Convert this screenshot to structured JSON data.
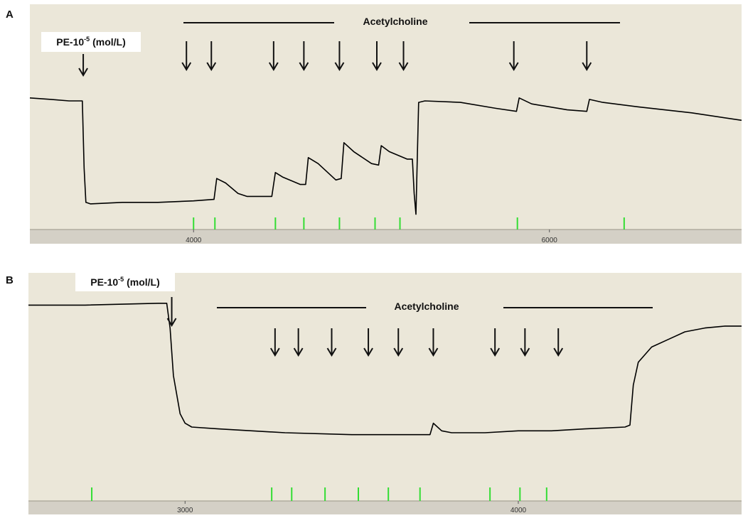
{
  "colors": {
    "background": "#ebe7d9",
    "trace": "#000000",
    "marker": "#33dd33",
    "axis_strip": "#d4d0c6",
    "label_box": "#ffffff"
  },
  "chart_data": [
    {
      "type": "line",
      "panel_label": "A",
      "drug_label": "Acetylcholine",
      "agonist_label": {
        "prefix": "PE-10",
        "exponent": "-5",
        "suffix": " (mol/L)"
      },
      "xlim": [
        3080,
        7080
      ],
      "ylim": [
        0,
        1
      ],
      "x_ticks": [
        4000,
        6000
      ],
      "x_tick_labels": [
        "4000",
        "6000"
      ],
      "y_axis_shown": false,
      "grid": false,
      "agonist_time": 3380,
      "ach_arrow_times": [
        3960,
        4100,
        4450,
        4620,
        4820,
        5030,
        5180,
        5800,
        6210
      ],
      "event_marker_times": [
        4000,
        4120,
        4460,
        4620,
        4820,
        5020,
        5160,
        5820,
        6420
      ],
      "trace": [
        [
          3080,
          0.82
        ],
        [
          3200,
          0.81
        ],
        [
          3300,
          0.8
        ],
        [
          3375,
          0.8
        ],
        [
          3385,
          0.35
        ],
        [
          3395,
          0.12
        ],
        [
          3420,
          0.11
        ],
        [
          3600,
          0.12
        ],
        [
          3800,
          0.12
        ],
        [
          4000,
          0.13
        ],
        [
          4115,
          0.14
        ],
        [
          4130,
          0.28
        ],
        [
          4180,
          0.25
        ],
        [
          4250,
          0.18
        ],
        [
          4300,
          0.16
        ],
        [
          4440,
          0.16
        ],
        [
          4460,
          0.32
        ],
        [
          4500,
          0.29
        ],
        [
          4600,
          0.24
        ],
        [
          4630,
          0.24
        ],
        [
          4645,
          0.42
        ],
        [
          4700,
          0.38
        ],
        [
          4800,
          0.27
        ],
        [
          4830,
          0.28
        ],
        [
          4845,
          0.52
        ],
        [
          4900,
          0.46
        ],
        [
          5000,
          0.38
        ],
        [
          5040,
          0.37
        ],
        [
          5055,
          0.5
        ],
        [
          5100,
          0.46
        ],
        [
          5200,
          0.41
        ],
        [
          5230,
          0.41
        ],
        [
          5240,
          0.18
        ],
        [
          5250,
          0.04
        ],
        [
          5265,
          0.79
        ],
        [
          5300,
          0.8
        ],
        [
          5500,
          0.79
        ],
        [
          5700,
          0.75
        ],
        [
          5815,
          0.73
        ],
        [
          5830,
          0.82
        ],
        [
          5900,
          0.78
        ],
        [
          6100,
          0.74
        ],
        [
          6210,
          0.73
        ],
        [
          6225,
          0.81
        ],
        [
          6300,
          0.79
        ],
        [
          6500,
          0.76
        ],
        [
          6800,
          0.72
        ],
        [
          7080,
          0.67
        ]
      ]
    },
    {
      "type": "line",
      "panel_label": "B",
      "drug_label": "Acetylcholine",
      "agonist_label": {
        "prefix": "PE-10",
        "exponent": "-5",
        "suffix": " (mol/L)"
      },
      "xlim": [
        2530,
        4670
      ],
      "ylim": [
        0,
        1
      ],
      "x_ticks": [
        3000,
        4000
      ],
      "x_tick_labels": [
        "3000",
        "4000"
      ],
      "y_axis_shown": false,
      "grid": false,
      "agonist_time": 2960,
      "ach_arrow_times": [
        3270,
        3340,
        3440,
        3550,
        3640,
        3745,
        3930,
        4020,
        4120
      ],
      "event_marker_times": [
        2720,
        3260,
        3320,
        3420,
        3520,
        3610,
        3705,
        3915,
        4005,
        4085
      ],
      "trace": [
        [
          2530,
          0.92
        ],
        [
          2700,
          0.92
        ],
        [
          2920,
          0.93
        ],
        [
          2945,
          0.93
        ],
        [
          2955,
          0.8
        ],
        [
          2965,
          0.55
        ],
        [
          2985,
          0.35
        ],
        [
          3000,
          0.3
        ],
        [
          3020,
          0.28
        ],
        [
          3100,
          0.27
        ],
        [
          3300,
          0.25
        ],
        [
          3500,
          0.24
        ],
        [
          3700,
          0.24
        ],
        [
          3735,
          0.24
        ],
        [
          3745,
          0.3
        ],
        [
          3770,
          0.26
        ],
        [
          3800,
          0.25
        ],
        [
          3900,
          0.25
        ],
        [
          4000,
          0.26
        ],
        [
          4100,
          0.26
        ],
        [
          4200,
          0.27
        ],
        [
          4320,
          0.28
        ],
        [
          4335,
          0.29
        ],
        [
          4345,
          0.5
        ],
        [
          4360,
          0.62
        ],
        [
          4400,
          0.7
        ],
        [
          4450,
          0.74
        ],
        [
          4500,
          0.78
        ],
        [
          4560,
          0.8
        ],
        [
          4620,
          0.81
        ],
        [
          4670,
          0.81
        ]
      ]
    }
  ]
}
